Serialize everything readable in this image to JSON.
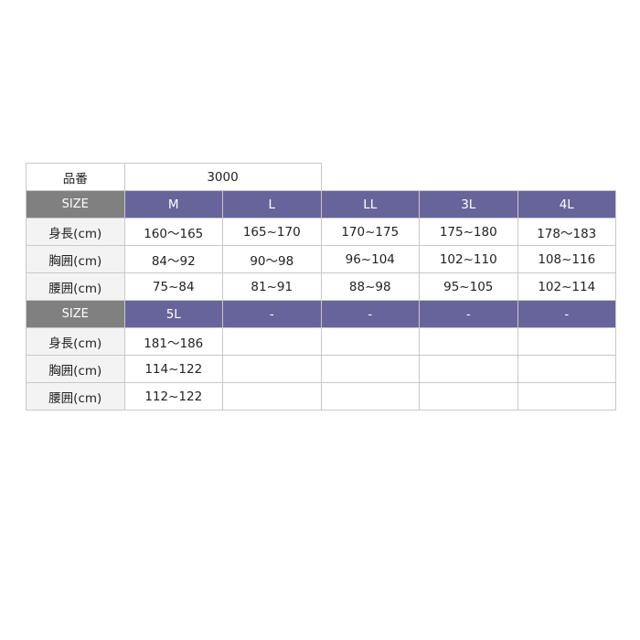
{
  "colors": {
    "header_bg": "#67649b",
    "size_label_bg": "#808080",
    "label_bg": "#f3f3f3",
    "grid": "#c8c8c8"
  },
  "product": {
    "label": "品番",
    "value": "3000"
  },
  "blocks": [
    {
      "size_label": "SIZE",
      "sizes": [
        "M",
        "L",
        "LL",
        "3L",
        "4L"
      ],
      "rows": [
        {
          "label": "身長(cm)",
          "values": [
            "160〜165",
            "165~170",
            "170~175",
            "175~180",
            "178〜183"
          ]
        },
        {
          "label": "胸囲(cm)",
          "values": [
            "84〜92",
            "90〜98",
            "96~104",
            "102~110",
            "108~116"
          ]
        },
        {
          "label": "腰囲(cm)",
          "values": [
            "75~84",
            "81~91",
            "88~98",
            "95~105",
            "102~114"
          ]
        }
      ]
    },
    {
      "size_label": "SIZE",
      "sizes": [
        "5L",
        "-",
        "-",
        "-",
        "-"
      ],
      "rows": [
        {
          "label": "身長(cm)",
          "values": [
            "181〜186",
            "",
            "",
            "",
            ""
          ]
        },
        {
          "label": "胸囲(cm)",
          "values": [
            "114~122",
            "",
            "",
            "",
            ""
          ]
        },
        {
          "label": "腰囲(cm)",
          "values": [
            "112~122",
            "",
            "",
            "",
            ""
          ]
        }
      ]
    }
  ]
}
